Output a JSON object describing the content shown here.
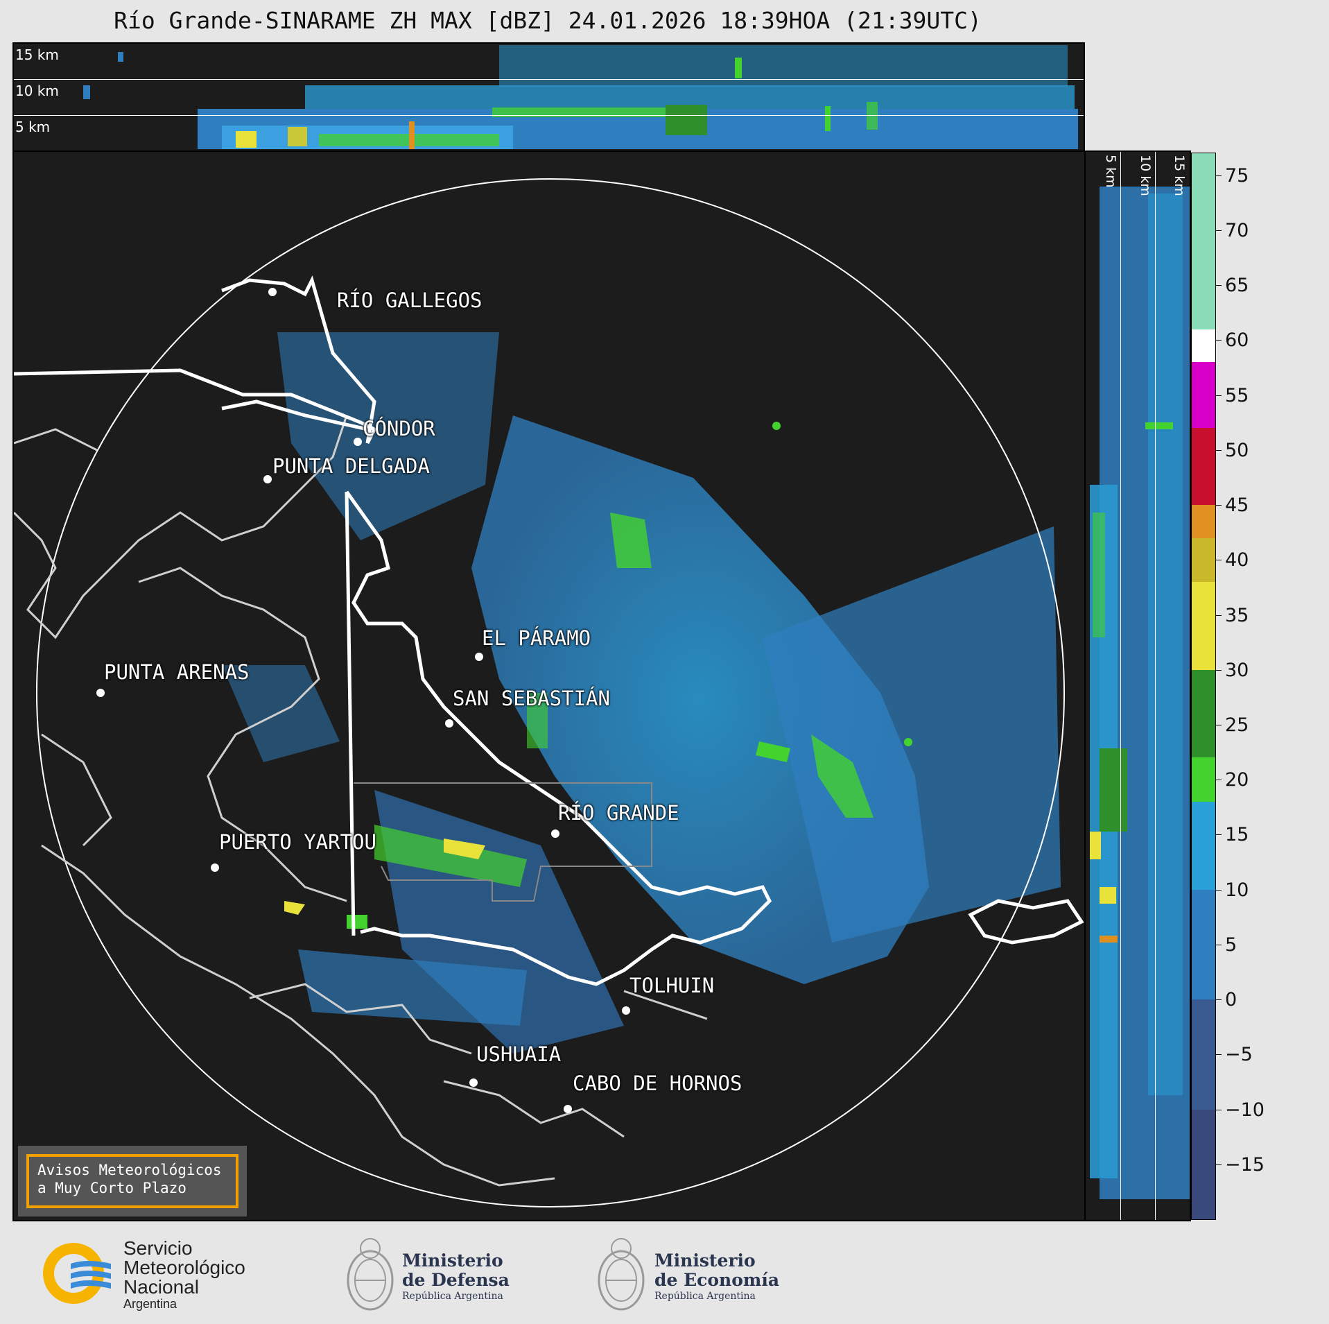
{
  "title": "Río Grande-SINARAME ZH MAX [dBZ] 24.01.2026 18:39HOA (21:39UTC)",
  "top_panel": {
    "height_labels": [
      "15 km",
      "10 km",
      "5 km"
    ]
  },
  "side_panel": {
    "height_labels": [
      "5 km",
      "10 km",
      "15 km"
    ]
  },
  "cities": [
    {
      "name": "RÍO GALLEGOS"
    },
    {
      "name": "CÓNDOR"
    },
    {
      "name": "PUNTA DELGADA"
    },
    {
      "name": "EL PÁRAMO"
    },
    {
      "name": "PUNTA ARENAS"
    },
    {
      "name": "SAN SEBASTIÁN"
    },
    {
      "name": "RÍO GRANDE"
    },
    {
      "name": "PUERTO YARTOU"
    },
    {
      "name": "TOLHUIN"
    },
    {
      "name": "USHUAIA"
    },
    {
      "name": "CABO DE HORNOS"
    }
  ],
  "colorbar": {
    "unit": "dBZ",
    "range": [
      -20,
      77
    ],
    "ticks": [
      "75",
      "70",
      "65",
      "60",
      "55",
      "50",
      "45",
      "40",
      "35",
      "30",
      "25",
      "20",
      "15",
      "10",
      "5",
      "0",
      "−5",
      "−10",
      "−15"
    ],
    "colors": {
      "weak": "#3b4a7c",
      "mid": "#2f7fc0",
      "light": "#2aa0d8",
      "green": "#2f8f2a",
      "bright_green": "#44d22e",
      "yellow": "#e8e23a",
      "orange": "#e09020",
      "red": "#c8102e",
      "magenta": "#d800c8",
      "white": "#ffffff",
      "mint": "#8adcb8"
    }
  },
  "legend": {
    "line1": "Avisos Meteorológicos",
    "line2": "a Muy Corto Plazo"
  },
  "logos": {
    "smn": {
      "line1": "Servicio",
      "line2": "Meteorológico",
      "line3": "Nacional",
      "line4": "Argentina"
    },
    "defensa": {
      "line1": "Ministerio",
      "line2": "de Defensa",
      "line3": "República Argentina"
    },
    "economia": {
      "line1": "Ministerio",
      "line2": "de Economía",
      "line3": "República Argentina"
    }
  }
}
